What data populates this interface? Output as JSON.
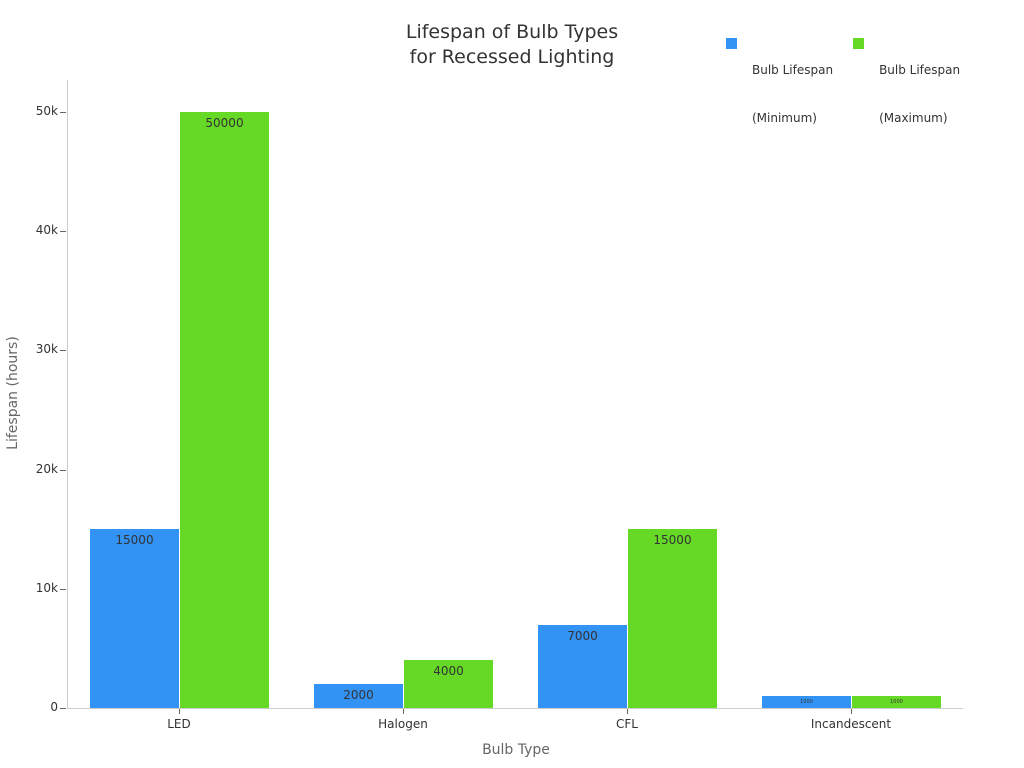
{
  "chart_data": {
    "type": "bar",
    "title": "Lifespan of Bulb Types\nfor Recessed Lighting",
    "title_lines": [
      "Lifespan of Bulb Types",
      "for Recessed Lighting"
    ],
    "xlabel": "Bulb Type",
    "ylabel": "Lifespan (hours)",
    "categories": [
      "LED",
      "Halogen",
      "CFL",
      "Incandescent"
    ],
    "series": [
      {
        "name": "Bulb Lifespan (Minimum)",
        "color": "#3393f5",
        "values": [
          15000,
          2000,
          7000,
          1000
        ]
      },
      {
        "name": "Bulb Lifespan (Maximum)",
        "color": "#66d926",
        "values": [
          50000,
          4000,
          15000,
          1000
        ]
      }
    ],
    "ylim": [
      0,
      52500
    ],
    "yticks": [
      0,
      10000,
      20000,
      30000,
      40000,
      50000
    ],
    "ytick_labels": [
      "0",
      "10k",
      "20k",
      "30k",
      "40k",
      "50k"
    ],
    "grid": false,
    "legend_position": "top-right",
    "data_labels": true
  },
  "legend": [
    {
      "line1": "Bulb Lifespan",
      "line2": "(Minimum)",
      "color": "#3393f5"
    },
    {
      "line1": "Bulb Lifespan",
      "line2": "(Maximum)",
      "color": "#66d926"
    }
  ]
}
